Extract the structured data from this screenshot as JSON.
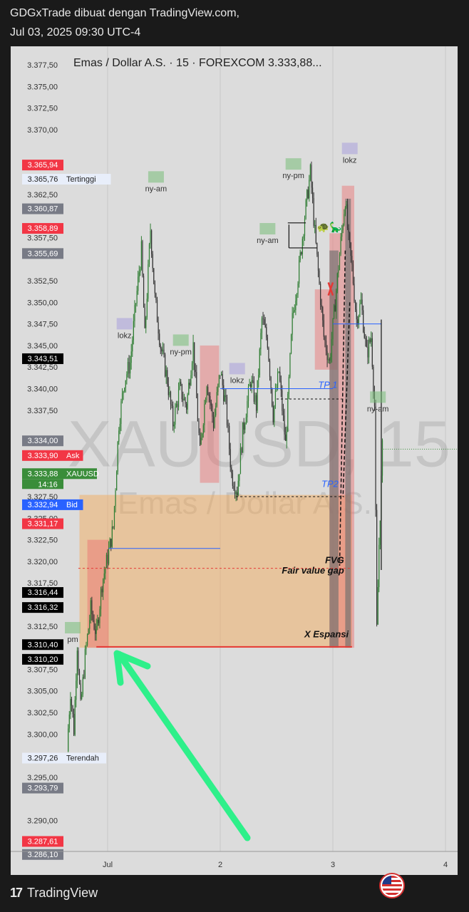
{
  "header": {
    "line1": "GDGxTrade dibuat dengan TradingView.com,",
    "line2": "Jul 03, 2025 09:30 UTC-4"
  },
  "brand": {
    "logo": "17",
    "name": "TradingView"
  },
  "chart_data": {
    "type": "candlestick",
    "title": "Emas / Dollar A.S. · 15 · FOREXCOM  3.333,88...",
    "watermark_symbol": "XAUUSD, 15",
    "watermark_name": "Emas / Dollar A.S.",
    "ylim": [
      3285.5,
      3379.5
    ],
    "y_ticks": [
      "3.377,50",
      "3.375,00",
      "3.372,50",
      "3.370,00",
      "3.362,50",
      "3.357,50",
      "3.352,50",
      "3.350,00",
      "3.347,50",
      "3.345,00",
      "3.342,50",
      "3.340,00",
      "3.337,50",
      "3.327,50",
      "3.325,00",
      "3.322,50",
      "3.320,00",
      "3.317,50",
      "3.312,50",
      "3.307,50",
      "3.305,00",
      "3.302,50",
      "3.300,00",
      "3.295,00",
      "3.290,00"
    ],
    "y_tick_values": [
      3377.5,
      3375,
      3372.5,
      3370,
      3362.5,
      3357.5,
      3352.5,
      3350,
      3347.5,
      3345,
      3342.5,
      3340,
      3337.5,
      3327.5,
      3325,
      3322.5,
      3320,
      3317.5,
      3312.5,
      3307.5,
      3305,
      3302.5,
      3300,
      3295,
      3290
    ],
    "x_ticks": [
      "Jul",
      "2",
      "3",
      "4"
    ],
    "x_tick_values": [
      0,
      1,
      2,
      3
    ],
    "xlim": [
      -0.85,
      3.1
    ],
    "price_tags": [
      {
        "value": "3.365,94",
        "y": 3365.94,
        "color": "#f23645",
        "label": ""
      },
      {
        "value": "3.365,76",
        "y": 3364.3,
        "color": "#e8eefa",
        "label": "Tertinggi",
        "dark": true
      },
      {
        "value": "3.360,87",
        "y": 3360.87,
        "color": "#787b86",
        "label": ""
      },
      {
        "value": "3.358,89",
        "y": 3358.6,
        "color": "#f23645",
        "label": ""
      },
      {
        "value": "3.355,69",
        "y": 3355.69,
        "color": "#787b86",
        "label": ""
      },
      {
        "value": "3.343,51",
        "y": 3343.51,
        "color": "#000000",
        "label": ""
      },
      {
        "value": "3.334,00",
        "y": 3334.0,
        "color": "#787b86",
        "label": ""
      },
      {
        "value": "3.333,90",
        "y": 3332.3,
        "color": "#f23645",
        "label": "Ask",
        "labelColor": "#f23645"
      },
      {
        "value": "3.333,88",
        "y": 3330.2,
        "color": "#3a8d3a",
        "label": "XAUUSD",
        "labelColor": "#3a8d3a",
        "sub": "14:16"
      },
      {
        "value": "3.332,94",
        "y": 3326.6,
        "color": "#2962ff",
        "label": "Bid",
        "labelColor": "#2962ff"
      },
      {
        "value": "3.331,17",
        "y": 3324.4,
        "color": "#f23645",
        "label": ""
      },
      {
        "value": "3.316,44",
        "y": 3316.44,
        "color": "#000000",
        "label": ""
      },
      {
        "value": "3.316,32",
        "y": 3314.7,
        "color": "#000000",
        "label": ""
      },
      {
        "value": "3.310,40",
        "y": 3310.4,
        "color": "#000000",
        "label": ""
      },
      {
        "value": "3.310,20",
        "y": 3308.7,
        "color": "#000000",
        "label": ""
      },
      {
        "value": "3.297,26",
        "y": 3297.26,
        "color": "#e8eefa",
        "label": "Terendah",
        "dark": true
      },
      {
        "value": "3.293,79",
        "y": 3293.79,
        "color": "#787b86",
        "label": ""
      },
      {
        "value": "3.287,61",
        "y": 3287.61,
        "color": "#f23645",
        "label": ""
      },
      {
        "value": "3.286,10",
        "y": 3286.1,
        "color": "#787b86",
        "label": ""
      }
    ],
    "session_labels": [
      {
        "text": "ny-am",
        "x": 0.43,
        "y": 3363.2
      },
      {
        "text": "lokz",
        "x": 0.15,
        "y": 3346.2
      },
      {
        "text": "ny-pm",
        "x": 0.65,
        "y": 3344.3
      },
      {
        "text": "lokz",
        "x": 1.15,
        "y": 3341.0
      },
      {
        "text": "ny-am",
        "x": 1.42,
        "y": 3357.2
      },
      {
        "text": "ny-pm",
        "x": 1.65,
        "y": 3364.7
      },
      {
        "text": "lokz",
        "x": 2.15,
        "y": 3366.5
      },
      {
        "text": "ny-am",
        "x": 2.4,
        "y": 3337.7
      },
      {
        "text": "pm",
        "x": -0.31,
        "y": 3311.0
      }
    ],
    "annotations": [
      {
        "text": "TP 1",
        "x": 2.04,
        "y": 3340.1,
        "color": "#2962ff"
      },
      {
        "text": "TP2",
        "x": 2.05,
        "y": 3328.6,
        "color": "#2962ff"
      },
      {
        "text": "FVG",
        "x": 2.1,
        "y": 3319.8,
        "color": "#111111"
      },
      {
        "text": "Fair value gap",
        "x": 2.1,
        "y": 3318.6,
        "color": "#111111"
      },
      {
        "text": "X Espansi",
        "x": 2.14,
        "y": 3311.2,
        "color": "#111111"
      }
    ],
    "emoji": "🐢🦕",
    "zones": [
      {
        "kind": "orange",
        "x0": -0.25,
        "x1": 2.17,
        "y0": 3310.0,
        "y1": 3327.7
      },
      {
        "kind": "red",
        "x0": -0.18,
        "x1": 0.01,
        "y0": 3310.0,
        "y1": 3322.5
      },
      {
        "kind": "red",
        "x0": 0.82,
        "x1": 0.99,
        "y0": 3329.1,
        "y1": 3345.0
      },
      {
        "kind": "red",
        "x0": 1.84,
        "x1": 2.04,
        "y0": 3342.2,
        "y1": 3351.5
      },
      {
        "kind": "red",
        "x0": 1.97,
        "x1": 2.08,
        "y0": 3310.0,
        "y1": 3358.0
      },
      {
        "kind": "red",
        "x0": 2.08,
        "x1": 2.19,
        "y0": 3310.0,
        "y1": 3363.5
      },
      {
        "kind": "gray",
        "x0": 1.97,
        "x1": 2.05,
        "y0": 3310.0,
        "y1": 3356.0
      },
      {
        "kind": "gray",
        "x0": 2.11,
        "x1": 2.16,
        "y0": 3310.0,
        "y1": 3362.0
      }
    ],
    "series": [
      {
        "name": "XAUUSD",
        "ohlc": []
      }
    ]
  }
}
